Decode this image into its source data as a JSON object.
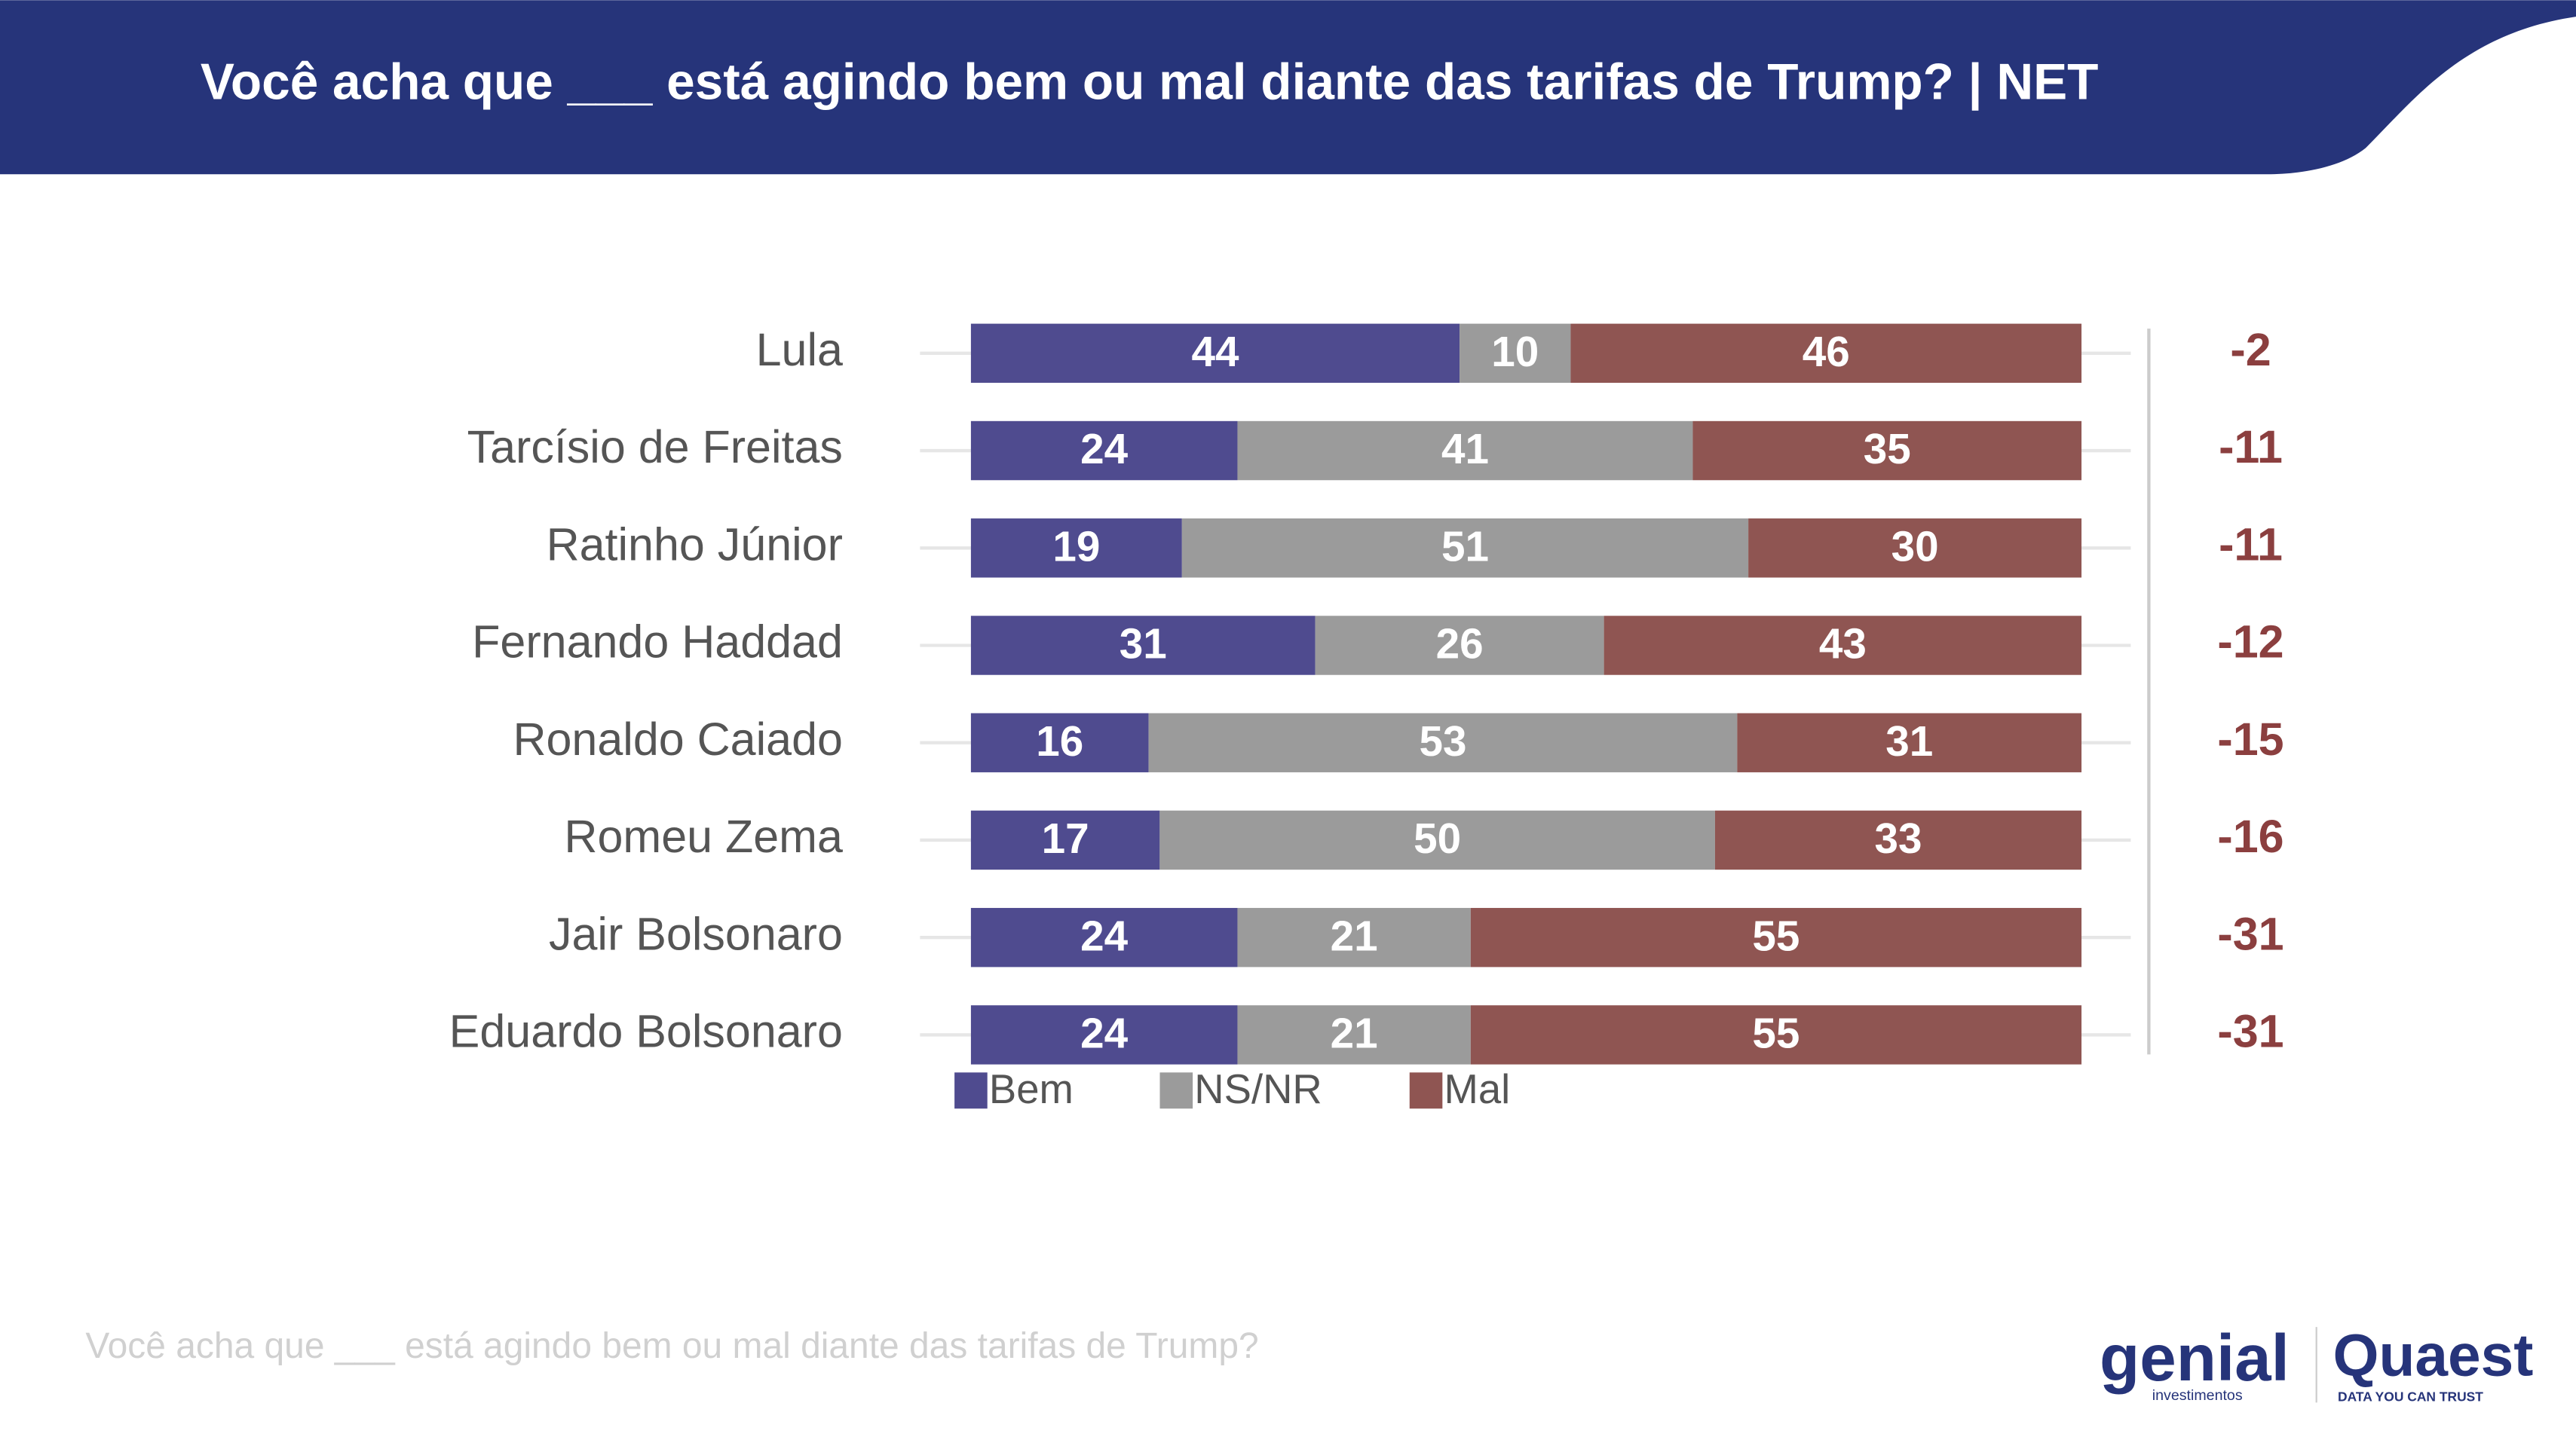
{
  "chart_data": {
    "type": "stacked_bar_horizontal",
    "title": "Você acha que ___ está agindo bem ou mal diante das tarifas de Trump? | NET",
    "categories": [
      "Lula",
      "Tarcísio de Freitas",
      "Ratinho Júnior",
      "Fernando Haddad",
      "Ronaldo Caiado",
      "Romeu Zema",
      "Jair Bolsonaro",
      "Eduardo Bolsonaro"
    ],
    "series": [
      {
        "name": "Bem",
        "color": "#4f4b8f",
        "values": [
          44,
          24,
          19,
          31,
          16,
          17,
          24,
          24
        ]
      },
      {
        "name": "NS/NR",
        "color": "#9b9b9b",
        "values": [
          10,
          41,
          51,
          26,
          53,
          50,
          21,
          21
        ]
      },
      {
        "name": "Mal",
        "color": "#8f5552",
        "values": [
          46,
          35,
          30,
          43,
          31,
          33,
          55,
          55
        ]
      }
    ],
    "net_values": [
      -2,
      -11,
      -11,
      -12,
      -15,
      -16,
      -31,
      -31
    ],
    "net_color": "#8b3f3f",
    "xlim": [
      0,
      100
    ],
    "footnote": "Você acha que ___ está agindo bem ou mal diante das tarifas de Trump?"
  },
  "logos": {
    "genial": "genial",
    "genial_sub": "investimentos",
    "quaest": "Quaest",
    "quaest_sub": "DATA YOU CAN TRUST"
  }
}
